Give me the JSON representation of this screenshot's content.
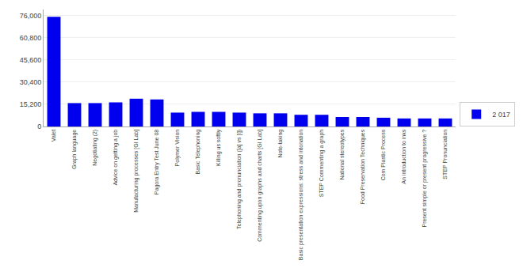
{
  "chart_data": {
    "type": "bar",
    "categories": [
      "Valet",
      "Graph language",
      "Negotiating (2)",
      "Advice on getting a job",
      "Manufacturing processes [GI Lab]",
      "Pagora Entry Test June 08",
      "Polymer Vision",
      "Basic Telephoning",
      "Killing us softly",
      "Telephoning and pronunciation ([a] vs [i])",
      "Commenting upon graphs and charts [GI Lab]",
      "Note-taking",
      "Basic presentation expressions: stress and intonation",
      "STEP Commenting a graph",
      "National stereotypes",
      "Food Preservation Techniques",
      "Com Plastic Process",
      "An introduction to inks",
      "Present simple or present progressive ?",
      "STEP Pronunciation"
    ],
    "series": [
      {
        "name": "2 017",
        "color": "#0000ee",
        "values": [
          75000,
          16000,
          16000,
          16500,
          19000,
          18500,
          9500,
          10000,
          10000,
          9500,
          9000,
          9000,
          8000,
          8000,
          6500,
          6500,
          6000,
          5500,
          5500,
          5500
        ]
      }
    ],
    "ylim": [
      0,
      80000
    ],
    "yticks": [
      0,
      {
        "value": 15200,
        "label": "15,200"
      },
      {
        "value": 30400,
        "label": "30,400"
      },
      {
        "value": 45600,
        "label": "45,600"
      },
      {
        "value": 60800,
        "label": "60,800"
      },
      {
        "value": 76000,
        "label": "76,000"
      }
    ],
    "grid": true,
    "legend": "lower right"
  }
}
